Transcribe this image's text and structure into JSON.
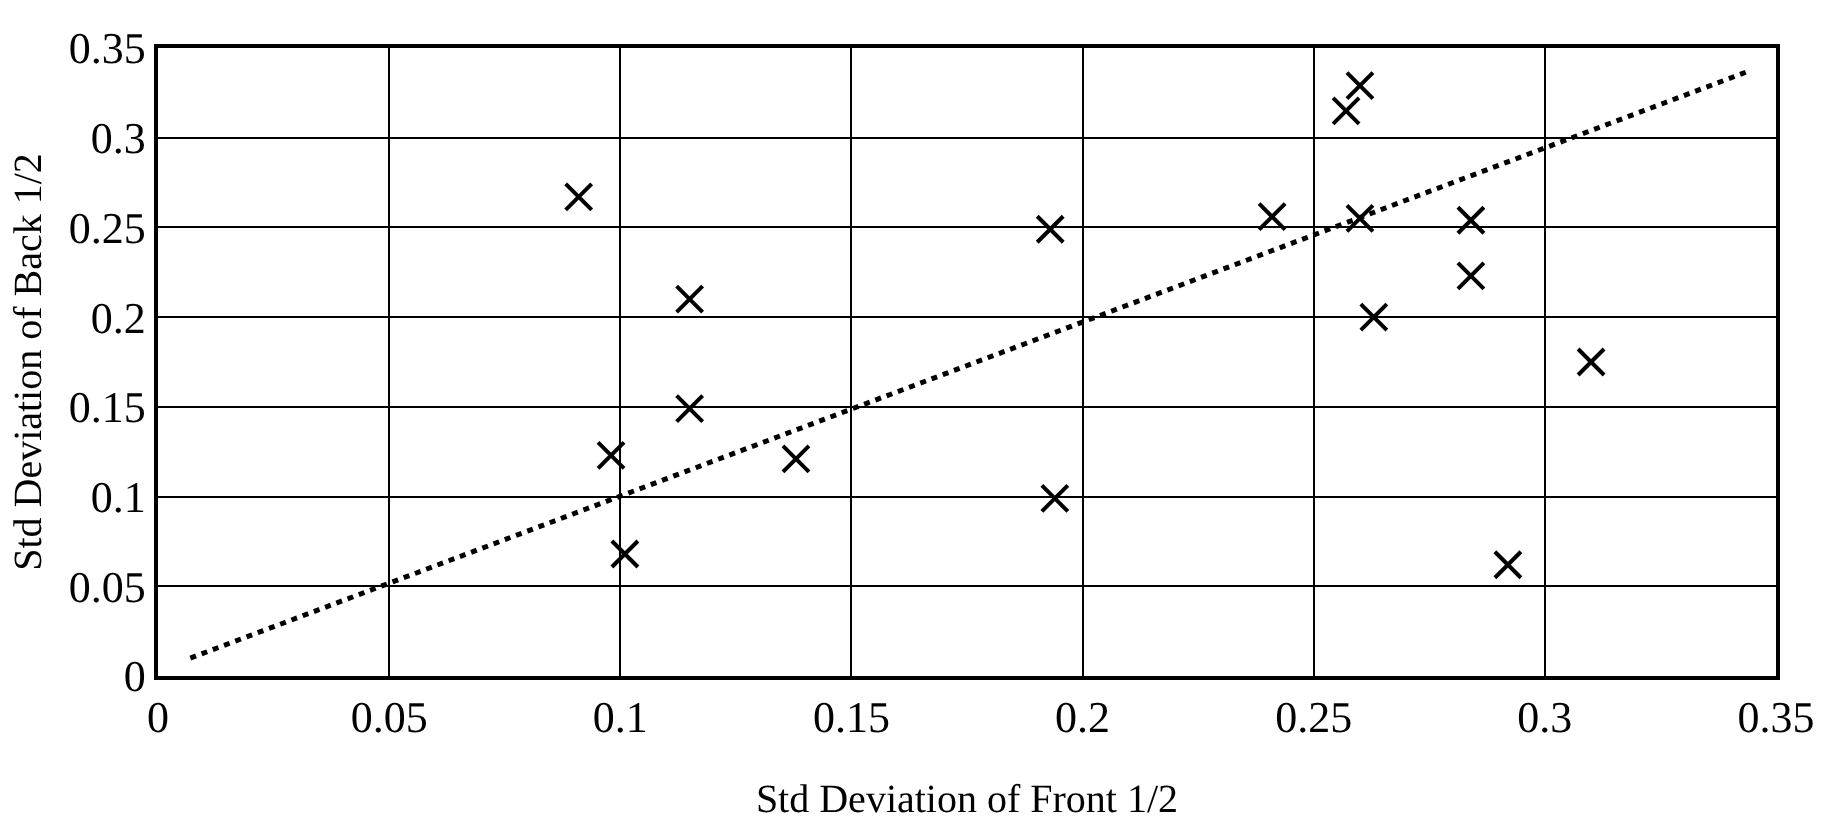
{
  "chart_data": {
    "type": "scatter",
    "xlabel": "Std Deviation of Front 1/2",
    "ylabel": "Std Deviation of Back 1/2",
    "xlim": [
      0,
      0.35
    ],
    "xticks": [
      0,
      0.05,
      0.1,
      0.15,
      0.2,
      0.25,
      0.3,
      0.35
    ],
    "ylim": [
      0,
      0.35
    ],
    "yticks": [
      0,
      0.05,
      0.1,
      0.15,
      0.2,
      0.25,
      0.3,
      0.35
    ],
    "grid": true,
    "marker": "cross",
    "series": [
      {
        "color": "#000000",
        "x": [
          0.091,
          0.115,
          0.115,
          0.098,
          0.138,
          0.101,
          0.193,
          0.194,
          0.241,
          0.26,
          0.257,
          0.26,
          0.263,
          0.284,
          0.284,
          0.31,
          0.292
        ],
        "values": [
          0.267,
          0.21,
          0.149,
          0.123,
          0.121,
          0.068,
          0.249,
          0.099,
          0.256,
          0.329,
          0.315,
          0.255,
          0.2,
          0.254,
          0.223,
          0.175,
          0.062
        ]
      },
      {
        "type": "line",
        "line_style": "dotted",
        "marker": "none",
        "color": "#000000",
        "x": [
          0.007,
          0.344
        ],
        "values": [
          0.01,
          0.337
        ]
      }
    ]
  }
}
